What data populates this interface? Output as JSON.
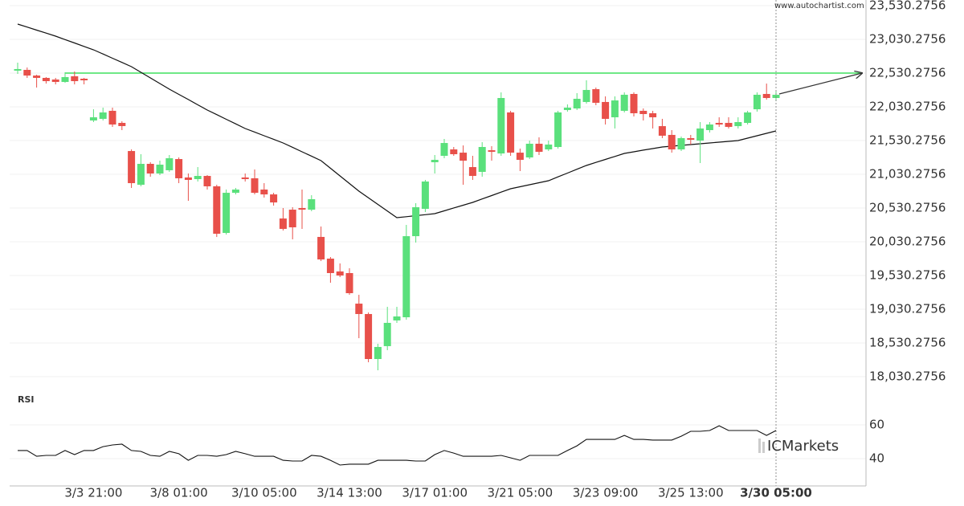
{
  "watermark": "www.autochartist.com",
  "logo": "ICMarkets",
  "chart_data": [
    {
      "type": "candlestick",
      "categories": [
        null,
        null,
        null,
        null,
        null,
        null,
        null,
        null,
        "3/3 21:00",
        null,
        null,
        null,
        null,
        null,
        null,
        null,
        null,
        "3/8 01:00",
        null,
        null,
        null,
        null,
        null,
        null,
        null,
        null,
        "3/10 05:00",
        null,
        null,
        null,
        null,
        null,
        null,
        null,
        null,
        "3/14 13:00",
        null,
        null,
        null,
        null,
        null,
        null,
        null,
        null,
        "3/17 01:00",
        null,
        null,
        null,
        null,
        null,
        null,
        null,
        null,
        "3/21 05:00",
        null,
        null,
        null,
        null,
        null,
        null,
        null,
        null,
        "3/23 09:00",
        null,
        null,
        null,
        null,
        null,
        null,
        null,
        null,
        "3/25 13:00",
        null,
        null,
        null,
        null,
        null,
        null,
        null,
        null,
        "3/30 05:00"
      ],
      "open": [
        22566,
        22578,
        22494,
        22459,
        22435,
        22399,
        22483,
        22447,
        21828,
        21852,
        21971,
        21792,
        21375,
        20875,
        21185,
        21042,
        21090,
        21256,
        20983,
        20959,
        21006,
        20852,
        20161,
        20756,
        20983,
        20971,
        20804,
        20732,
        20375,
        20506,
        20530,
        20506,
        20102,
        19780,
        19590,
        19566,
        19113,
        18959,
        18292,
        18483,
        18864,
        18911,
        20113,
        20518,
        21209,
        21304,
        21399,
        21351,
        21137,
        21066,
        21387,
        21339,
        21947,
        21351,
        21280,
        21483,
        21399,
        21435,
        21983,
        22006,
        22102,
        22292,
        22102,
        21875,
        21971,
        22221,
        21971,
        21935,
        21744,
        21614,
        21399,
        21566,
        21530,
        21685,
        21792,
        21792,
        21744,
        21792,
        21994,
        22221,
        22161
      ],
      "high": [
        22685,
        22613,
        22506,
        22471,
        22459,
        22542,
        22554,
        22459,
        21994,
        22018,
        22018,
        21816,
        21399,
        21328,
        21209,
        21232,
        21316,
        21280,
        21042,
        21137,
        21018,
        20875,
        20804,
        20828,
        21042,
        21102,
        20899,
        20756,
        20530,
        20542,
        20804,
        20720,
        20256,
        19804,
        19709,
        19637,
        19244,
        18982,
        18518,
        19066,
        19066,
        20280,
        20602,
        20947,
        21316,
        21554,
        21435,
        21458,
        21304,
        21506,
        21447,
        22244,
        21971,
        21411,
        21530,
        21578,
        21530,
        21971,
        22066,
        22233,
        22423,
        22316,
        22185,
        22185,
        22244,
        22244,
        22006,
        21971,
        21852,
        21685,
        21590,
        21614,
        21804,
        21804,
        21875,
        21875,
        21875,
        21971,
        22244,
        22375,
        22256
      ],
      "low": [
        22518,
        22459,
        22316,
        22375,
        22363,
        22387,
        22363,
        22363,
        21804,
        21828,
        21733,
        21685,
        20828,
        20852,
        20994,
        21018,
        21066,
        20899,
        20637,
        20923,
        20804,
        20101,
        20137,
        20732,
        20923,
        20732,
        20685,
        20566,
        20197,
        20066,
        20221,
        20483,
        19744,
        19423,
        19506,
        19244,
        18601,
        18244,
        18125,
        18423,
        18828,
        18875,
        20018,
        20471,
        21042,
        21268,
        21304,
        20875,
        20947,
        20994,
        21232,
        21304,
        21304,
        21078,
        21256,
        21316,
        21375,
        21411,
        21959,
        21983,
        22078,
        22054,
        21768,
        21709,
        21947,
        21887,
        21828,
        21709,
        21566,
        21351,
        21375,
        21471,
        21197,
        21649,
        21733,
        21709,
        21709,
        21768,
        21959,
        22137,
        22113
      ],
      "close": [
        22590,
        22494,
        22459,
        22411,
        22399,
        22471,
        22411,
        22423,
        21875,
        21947,
        21768,
        21745,
        20899,
        21185,
        21042,
        21173,
        21268,
        20971,
        20947,
        21006,
        20852,
        20149,
        20756,
        20804,
        20959,
        20756,
        20732,
        20613,
        20221,
        20244,
        20506,
        20661,
        19768,
        19566,
        19530,
        19268,
        18959,
        18292,
        18471,
        18828,
        18923,
        20113,
        20542,
        20923,
        21244,
        21494,
        21328,
        21232,
        21006,
        21435,
        21363,
        22161,
        21351,
        21244,
        21483,
        21363,
        21471,
        21947,
        22018,
        22149,
        22280,
        22090,
        21852,
        22125,
        22209,
        21935,
        21923,
        21875,
        21602,
        21399,
        21566,
        21542,
        21709,
        21768,
        21768,
        21733,
        21804,
        21947,
        22209,
        22161,
        22209
      ],
      "up_color": "#5ae07c",
      "down_color": "#e8504a",
      "moving_average": {
        "color": "#111111",
        "values": [
          23256,
          23212,
          23167,
          23123,
          23078,
          23027,
          22977,
          22926,
          22875,
          22813,
          22750,
          22688,
          22625,
          22542,
          22459,
          22375,
          22292,
          22215,
          22138,
          22060,
          21983,
          21915,
          21846,
          21778,
          21709,
          21656,
          21602,
          21549,
          21495,
          21430,
          21364,
          21299,
          21233,
          21120,
          21007,
          20893,
          20780,
          20682,
          20584,
          20485,
          20387,
          20402,
          20417,
          20432,
          20447,
          20489,
          20531,
          20572,
          20614,
          20665,
          20715,
          20766,
          20816,
          20846,
          20876,
          20905,
          20935,
          20992,
          21048,
          21105,
          21161,
          21206,
          21251,
          21295,
          21340,
          21364,
          21388,
          21411,
          21435,
          21447,
          21459,
          21471,
          21483,
          21495,
          21507,
          21518,
          21530,
          21566,
          21602,
          21637,
          21673
        ]
      },
      "level": {
        "value": 22530.2756,
        "color": "#3fe05e"
      },
      "ylim": [
        17839.7,
        23613.6
      ],
      "yticks": [
        {
          "value": 18030.2756,
          "label": "18,030.2756"
        },
        {
          "value": 18530.2756,
          "label": "18,530.2756"
        },
        {
          "value": 19030.2756,
          "label": "19,030.2756"
        },
        {
          "value": 19530.2756,
          "label": "19,530.2756"
        },
        {
          "value": 20030.2756,
          "label": "20,030.2756"
        },
        {
          "value": 20530.2756,
          "label": "20,530.2756"
        },
        {
          "value": 21030.2756,
          "label": "21,030.2756"
        },
        {
          "value": 21530.2756,
          "label": "21,530.2756"
        },
        {
          "value": 22030.2756,
          "label": "22,030.2756"
        },
        {
          "value": 22530.2756,
          "label": "22,530.2756"
        },
        {
          "value": 23030.2756,
          "label": "23,030.2756"
        },
        {
          "value": 23530.2756,
          "label": "23,530.2756"
        }
      ],
      "grid": true
    },
    {
      "type": "line",
      "title": "RSI",
      "color": "#111111",
      "values": [
        44.8,
        44.8,
        41.4,
        41.9,
        41.9,
        44.8,
        42.4,
        44.8,
        44.8,
        47.1,
        48.1,
        48.6,
        44.8,
        44.3,
        41.9,
        41.4,
        44.3,
        42.9,
        39.0,
        41.9,
        41.9,
        41.4,
        42.4,
        44.3,
        42.9,
        41.4,
        41.4,
        41.4,
        39.0,
        38.6,
        38.6,
        41.9,
        41.4,
        39.0,
        36.2,
        36.7,
        36.7,
        36.7,
        39.0,
        39.0,
        39.0,
        39.0,
        38.6,
        38.6,
        42.4,
        44.8,
        43.3,
        41.4,
        41.4,
        41.4,
        41.4,
        41.9,
        40.5,
        39.0,
        41.9,
        41.9,
        41.9,
        41.9,
        44.8,
        47.6,
        51.4,
        51.4,
        51.4,
        51.4,
        53.8,
        51.4,
        51.4,
        51.0,
        51.0,
        51.0,
        53.3,
        56.2,
        56.2,
        56.7,
        59.5,
        56.7,
        56.7,
        56.7,
        56.7,
        53.8,
        56.7
      ],
      "ylim": [
        23.8,
        81
      ],
      "yticks": [
        40,
        60
      ],
      "grid": true
    }
  ]
}
